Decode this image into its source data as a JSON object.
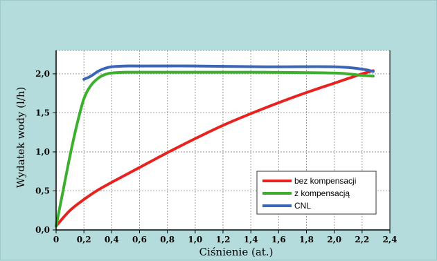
{
  "chart_data": {
    "type": "line",
    "title": "",
    "xlabel": "Ciśnienie (at.)",
    "ylabel": "Wydatek wody (l/h)",
    "xlim": [
      0,
      2.4
    ],
    "ylim": [
      0,
      2.3
    ],
    "x_ticks": [
      "0",
      "0,2",
      "0,4",
      "0,6",
      "0,8",
      "1,0",
      "1,2",
      "1,4",
      "1,6",
      "1,8",
      "2,0",
      "2,2",
      "2,4"
    ],
    "x_tick_values": [
      0,
      0.2,
      0.4,
      0.6,
      0.8,
      1.0,
      1.2,
      1.4,
      1.6,
      1.8,
      2.0,
      2.2,
      2.4
    ],
    "y_ticks": [
      "0,0",
      "0,5",
      "1,0",
      "1,5",
      "2,0"
    ],
    "y_tick_values": [
      0,
      0.5,
      1.0,
      1.5,
      2.0
    ],
    "grid": true,
    "legend_position": "bottom-right",
    "series": [
      {
        "name": "bez kompensacji",
        "color": "#e8231f",
        "x": [
          0,
          0.1,
          0.2,
          0.3,
          0.4,
          0.6,
          0.8,
          1.0,
          1.2,
          1.4,
          1.6,
          1.8,
          2.0,
          2.2,
          2.28
        ],
        "y": [
          0.05,
          0.25,
          0.39,
          0.51,
          0.61,
          0.8,
          0.99,
          1.17,
          1.34,
          1.49,
          1.63,
          1.76,
          1.88,
          2.0,
          2.04
        ]
      },
      {
        "name": "z kompensacją",
        "color": "#3cb02e",
        "x": [
          0,
          0.05,
          0.1,
          0.15,
          0.2,
          0.25,
          0.3,
          0.35,
          0.4,
          0.5,
          0.6,
          1.0,
          1.5,
          2.0,
          2.2,
          2.28
        ],
        "y": [
          0.05,
          0.5,
          0.95,
          1.35,
          1.68,
          1.85,
          1.94,
          1.99,
          2.01,
          2.02,
          2.02,
          2.02,
          2.02,
          2.01,
          1.98,
          1.97
        ]
      },
      {
        "name": "CNL",
        "color": "#3b66b8",
        "x": [
          0.2,
          0.25,
          0.3,
          0.35,
          0.4,
          0.5,
          0.6,
          1.0,
          1.5,
          2.0,
          2.2,
          2.28
        ],
        "y": [
          1.93,
          1.97,
          2.03,
          2.07,
          2.09,
          2.1,
          2.1,
          2.1,
          2.09,
          2.09,
          2.06,
          2.03
        ]
      }
    ],
    "colors": {
      "background": "#b5dcdc",
      "plot_background": "#ffffff",
      "grid": "#9a9a9a"
    }
  }
}
